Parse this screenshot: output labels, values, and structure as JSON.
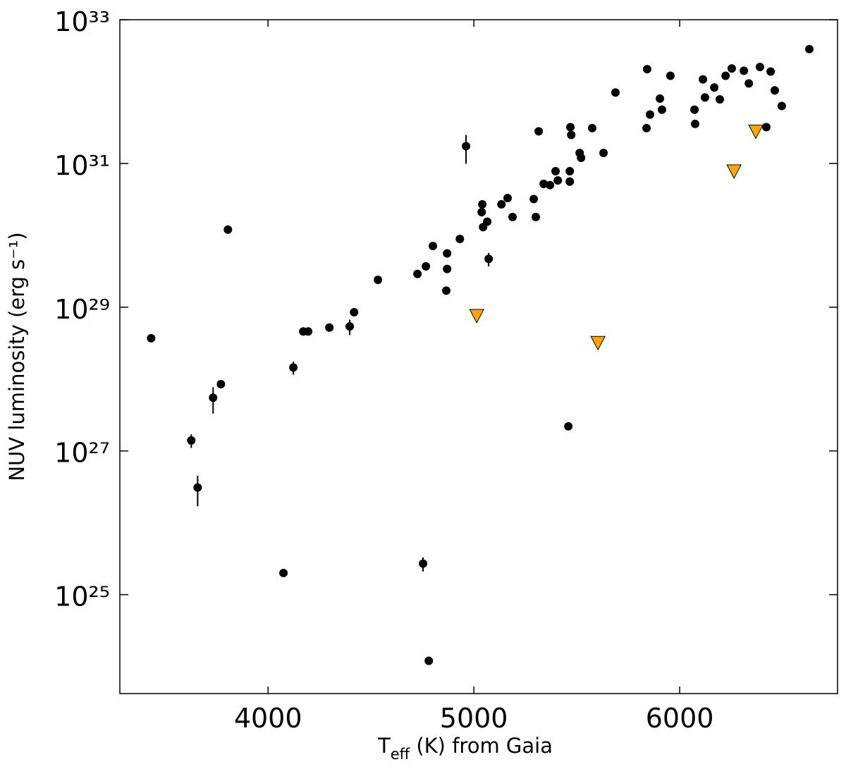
{
  "chart_data": {
    "type": "scatter",
    "xlabel": {
      "text": "T",
      "subscript": "eff",
      "rest": " (K) from Gaia"
    },
    "ylabel": "NUV luminosity (erg s⁻¹)",
    "log_y": true,
    "xlim": [
      3280,
      6767
    ],
    "ylim": [
      4.2e+23,
      1e+33
    ],
    "xticks": [
      4000,
      5000,
      6000
    ],
    "yticks": [
      {
        "value": 1e+25,
        "label": "10²⁵"
      },
      {
        "value": 1e+27,
        "label": "10²⁷"
      },
      {
        "value": 1e+29,
        "label": "10²⁹"
      },
      {
        "value": 1e+31,
        "label": "10³¹"
      },
      {
        "value": 1e+33,
        "label": "10³³"
      }
    ],
    "series": [
      {
        "color": "#000000",
        "marker": "circle",
        "x": [
          3432,
          3627,
          3658,
          3733,
          3771,
          3805,
          4075,
          4123,
          4171,
          4195,
          4298,
          4397,
          4418,
          4534,
          4726,
          4767,
          4801,
          4753,
          4781,
          4870,
          4870,
          4866,
          4932,
          4962,
          5041,
          5038,
          5045,
          5065,
          5072,
          5134,
          5164,
          5188,
          5291,
          5301,
          5315,
          5339,
          5370,
          5397,
          5408,
          5459,
          5466,
          5466,
          5469,
          5473,
          5514,
          5521,
          5575,
          5630,
          5688,
          5839,
          5842,
          5856,
          5904,
          5914,
          5955,
          6072,
          6075,
          6113,
          6123,
          6168,
          6195,
          6223,
          6253,
          6312,
          6336,
          6390,
          6421,
          6442,
          6462,
          6496,
          6630
        ],
        "values": [
          3.7e+28,
          1.4e+27,
          3.1e+26,
          5.5e+27,
          8.5e+27,
          1.2e+30,
          2e+25,
          1.45e+28,
          4.6e+28,
          4.6e+28,
          5.2e+28,
          5.4e+28,
          8.5e+28,
          2.4e+29,
          2.9e+29,
          3.7e+29,
          7.1e+29,
          2.7e+25,
          1.2e+24,
          5.6e+29,
          3.4e+29,
          1.7e+29,
          8.9e+29,
          1.74e+31,
          2.7e+30,
          2.1e+30,
          1.3e+30,
          1.55e+30,
          4.7e+29,
          2.7e+30,
          3.3e+30,
          1.8e+30,
          3.2e+30,
          1.8e+30,
          2.8e+31,
          5.2e+30,
          5e+30,
          7.8e+30,
          5.8e+30,
          2.2e+27,
          7.8e+30,
          5.6e+30,
          3.2e+31,
          2.5e+31,
          1.4e+31,
          1.2e+31,
          3.1e+31,
          1.4e+31,
          9.7e+31,
          3.1e+31,
          2.05e+32,
          4.8e+31,
          8e+31,
          5.6e+31,
          1.66e+32,
          5.6e+31,
          3.55e+31,
          1.48e+32,
          8.3e+31,
          1.14e+32,
          7.8e+31,
          1.66e+32,
          2.1e+32,
          1.95e+32,
          1.3e+32,
          2.2e+32,
          3.2e+31,
          1.9e+32,
          1.04e+32,
          6.3e+31,
          3.9e+32
        ],
        "yerr": [
          null,
          3e+26,
          1.4e+26,
          2.2e+27,
          null,
          null,
          null,
          3e+27,
          null,
          null,
          null,
          1.3e+28,
          null,
          null,
          null,
          null,
          null,
          6e+24,
          null,
          null,
          null,
          null,
          null,
          7.5e+30,
          null,
          null,
          null,
          null,
          1e+29,
          null,
          null,
          null,
          null,
          null,
          null,
          null,
          null,
          null,
          null,
          null,
          null,
          null,
          null,
          null,
          null,
          null,
          null,
          null,
          null,
          null,
          null,
          null,
          null,
          null,
          null,
          null,
          null,
          null,
          null,
          null,
          null,
          null,
          null,
          null,
          null,
          null,
          null,
          null,
          null,
          null,
          null
        ]
      },
      {
        "color": "#ffa500",
        "marker": "triangle-down",
        "x": [
          5014,
          5603,
          6264,
          6370
        ],
        "values": [
          7.6e+28,
          3.2e+28,
          7.8e+30,
          2.8e+31
        ]
      }
    ]
  }
}
